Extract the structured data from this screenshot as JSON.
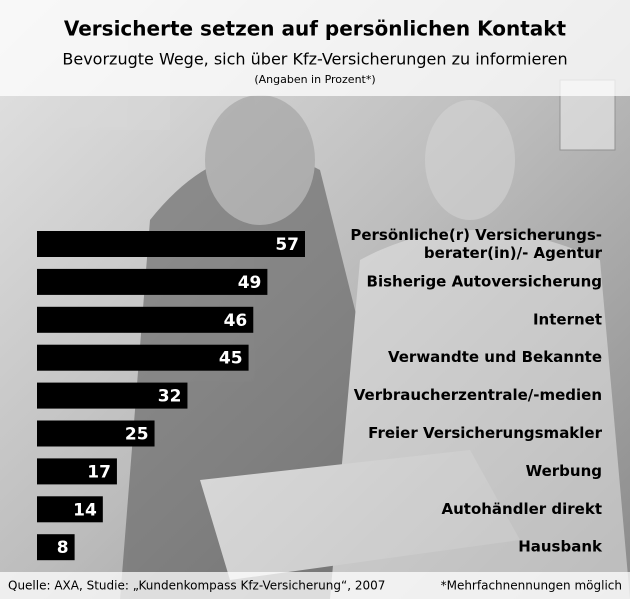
{
  "chart_data": {
    "type": "bar",
    "orientation": "horizontal",
    "title": "Versicherte setzen auf persönlichen Kontakt",
    "subtitle": "Bevorzugte Wege, sich über Kfz-Versicherungen zu informieren",
    "note": "(Angaben in Prozent*)",
    "categories": [
      "Persönliche(r) Versicherungs-\nberater(in)/- Agentur",
      "Bisherige Autoversicherung",
      "Internet",
      "Verwandte und Bekannte",
      "Verbraucherzentrale/-medien",
      "Freier Versicherungsmakler",
      "Werbung",
      "Autohändler direkt",
      "Hausbank"
    ],
    "values": [
      57,
      49,
      46,
      45,
      32,
      25,
      17,
      14,
      8
    ],
    "color": "#000000",
    "source": "Quelle: AXA, Studie: „Kundenkompass Kfz-Versicherung“, 2007",
    "footnote": "*Mehrfachnennungen möglich"
  }
}
